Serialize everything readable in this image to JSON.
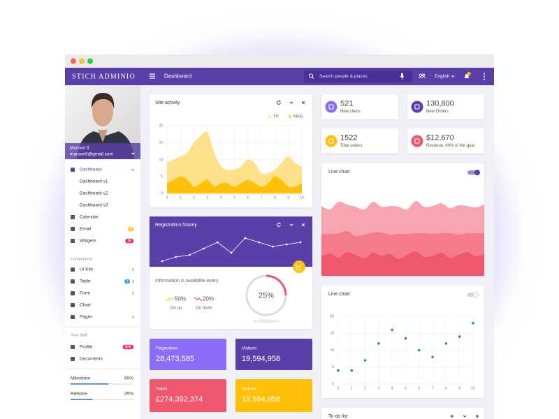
{
  "brand": "STICH ADMINIO",
  "header": {
    "title": "Dashboard",
    "search": "Search people & places",
    "language": "English"
  },
  "profile": {
    "name": "Maroon 5",
    "email": "maroon5@gmail.com"
  },
  "nav": {
    "main": [
      {
        "label": "Dashboard",
        "active": true,
        "arrow": "down",
        "children": [
          "Dashboard v1",
          "Dashboard v2",
          "Dashboard v3"
        ]
      },
      {
        "label": "Calendar"
      },
      {
        "label": "Email",
        "badge": "8",
        "badge_color": "#ffc107"
      },
      {
        "label": "Widgets",
        "badge": "35",
        "badge_color": "#e91e63"
      }
    ],
    "components_title": "Components",
    "components": [
      {
        "label": "UI Kits",
        "arrow": "right"
      },
      {
        "label": "Table",
        "badge": "2",
        "badge_color": "#2196f3",
        "arrow": "right"
      },
      {
        "label": "Form",
        "arrow": "right"
      },
      {
        "label": "Chart"
      },
      {
        "label": "Pages",
        "arrow": "right"
      }
    ],
    "stuff_title": "Your Stuff",
    "stuff": [
      {
        "label": "Profile",
        "badge": "30%",
        "badge_color": "#e91e63"
      },
      {
        "label": "Documents"
      }
    ]
  },
  "progress": [
    {
      "label": "Milestone",
      "value": 60,
      "value_label": "60%",
      "color": "#3f6fd6"
    },
    {
      "label": "Release",
      "value": 35,
      "value_label": "35%",
      "color": "#3f6fd6"
    }
  ],
  "stats": [
    {
      "value": "521",
      "label": "New cliens",
      "color": "#8c6cf6"
    },
    {
      "value": "130,800",
      "label": "New Orders",
      "color": "#5b3fa8"
    },
    {
      "value": "1522",
      "label": "Total orders",
      "color": "#ffc107"
    },
    {
      "value": "$12,670",
      "label": "Revenue, 60% of the goal",
      "color": "#f0576e"
    }
  ],
  "site_activity": {
    "type": "area",
    "title": "Site activity",
    "x": [
      0,
      0.5,
      1,
      1.5,
      2,
      2.5,
      3,
      3.5,
      4,
      4.5,
      5,
      5.5,
      6,
      6.5,
      7,
      7.5,
      8,
      8.5,
      9,
      9.5,
      10
    ],
    "series": [
      {
        "name": "TV",
        "color": "#ffe08a",
        "values": [
          9,
          10,
          11,
          12,
          15,
          17,
          18,
          12,
          8,
          7,
          7,
          8,
          10,
          9,
          6,
          6,
          7,
          9,
          11,
          9,
          8
        ]
      },
      {
        "name": "MAG",
        "color": "#ffc107",
        "values": [
          3,
          4,
          5,
          4,
          2,
          3,
          4,
          2,
          3,
          3,
          2,
          3,
          4,
          3,
          2,
          3,
          5,
          4,
          2,
          2,
          3
        ]
      }
    ],
    "xlim": [
      0,
      10
    ],
    "ylim": [
      0,
      20
    ],
    "xticks": [
      0,
      1,
      2,
      3,
      4,
      5,
      6,
      7,
      8,
      9,
      10
    ],
    "yticks": [
      0,
      5,
      10,
      15,
      20
    ],
    "grid": true
  },
  "registration": {
    "type": "line",
    "title": "Registration history",
    "values": [
      2,
      4,
      5,
      8,
      11,
      6,
      13,
      11,
      9,
      10,
      11
    ]
  },
  "info": {
    "text": "Information is available every",
    "up": {
      "value": "50%",
      "label": "Go up"
    },
    "down": {
      "value": "20%",
      "label": "Go down"
    },
    "donut": {
      "value": 25,
      "label": "25%"
    }
  },
  "line_chart_1": {
    "type": "stacked_area",
    "title": "Line chart",
    "toggle": true,
    "series": [
      {
        "color": "#f0576e",
        "values": [
          28,
          32,
          26,
          34,
          30,
          25,
          33,
          29,
          31,
          24,
          30,
          35,
          27,
          29,
          33,
          26,
          30,
          34,
          28,
          31
        ]
      },
      {
        "color": "#f47b8b",
        "values": [
          32,
          28,
          35,
          30,
          27,
          34,
          29,
          33,
          28,
          36,
          30,
          26,
          34,
          31,
          28,
          35,
          29,
          27,
          33,
          30
        ]
      },
      {
        "color": "#f8a5b0",
        "values": [
          40,
          35,
          45,
          38,
          42,
          36,
          44,
          37,
          41,
          39,
          35,
          46,
          38,
          40,
          43,
          36,
          42,
          39,
          37,
          41
        ]
      }
    ]
  },
  "line_chart_2": {
    "type": "scatter",
    "title": "Line chart",
    "toggle": false,
    "color": "#1a9a6c",
    "x": [
      0,
      1,
      2,
      3,
      4,
      5,
      6,
      7,
      8,
      9,
      10
    ],
    "values": [
      4,
      4,
      7,
      12,
      16,
      13.5,
      10,
      8,
      12,
      14,
      18
    ],
    "xlim": [
      0,
      10
    ],
    "ylim": [
      0,
      20
    ],
    "xticks": [
      0,
      1,
      2,
      3,
      4,
      5,
      6,
      7,
      8,
      9,
      10
    ],
    "yticks": [
      0,
      5,
      10,
      15,
      20
    ],
    "grid": true
  },
  "tiles": [
    {
      "label": "Pageviews",
      "value": "28,473,585",
      "color": "#8c6cf6"
    },
    {
      "label": "Visitors",
      "value": "19,594,958",
      "color": "#5b3fa8"
    },
    {
      "label": "Sales",
      "value": "£274,392,374",
      "color": "#f0576e"
    },
    {
      "label": "Visitors",
      "value": "19,594,958",
      "color": "#ffc107"
    }
  ],
  "todo": {
    "title": "To do list"
  }
}
